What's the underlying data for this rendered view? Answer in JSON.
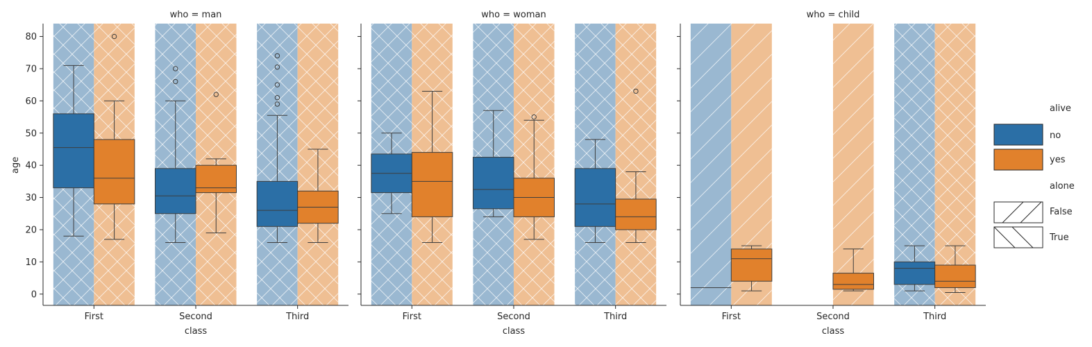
{
  "chart_data": {
    "type": "box",
    "facet_variable": "who",
    "facets": [
      {
        "title": "who = man",
        "boxes": [
          {
            "class": "First",
            "alive": "no",
            "min": 18,
            "q1": 33,
            "median": 45.5,
            "q3": 56,
            "max": 71,
            "outliers": []
          },
          {
            "class": "First",
            "alive": "yes",
            "min": 17,
            "q1": 28,
            "median": 36,
            "q3": 48,
            "max": 60,
            "outliers": [
              80
            ]
          },
          {
            "class": "Second",
            "alive": "no",
            "min": 16,
            "q1": 25,
            "median": 30.5,
            "q3": 39,
            "max": 60,
            "outliers": [
              66,
              70
            ]
          },
          {
            "class": "Second",
            "alive": "yes",
            "min": 19,
            "q1": 31.5,
            "median": 33,
            "q3": 40,
            "max": 42,
            "outliers": [
              62
            ]
          },
          {
            "class": "Third",
            "alive": "no",
            "min": 16,
            "q1": 21,
            "median": 26,
            "q3": 35,
            "max": 55.5,
            "outliers": [
              59,
              61,
              65,
              70.5,
              74
            ]
          },
          {
            "class": "Third",
            "alive": "yes",
            "min": 16,
            "q1": 22,
            "median": 27,
            "q3": 32,
            "max": 45,
            "outliers": []
          }
        ]
      },
      {
        "title": "who = woman",
        "boxes": [
          {
            "class": "First",
            "alive": "no",
            "min": 25,
            "q1": 31.5,
            "median": 37.5,
            "q3": 43.5,
            "max": 50,
            "outliers": []
          },
          {
            "class": "First",
            "alive": "yes",
            "min": 16,
            "q1": 24,
            "median": 35,
            "q3": 44,
            "max": 63,
            "outliers": []
          },
          {
            "class": "Second",
            "alive": "no",
            "min": 24,
            "q1": 26.5,
            "median": 32.5,
            "q3": 42.5,
            "max": 57,
            "outliers": []
          },
          {
            "class": "Second",
            "alive": "yes",
            "min": 17,
            "q1": 24,
            "median": 30,
            "q3": 36,
            "max": 54,
            "outliers": [
              55
            ]
          },
          {
            "class": "Third",
            "alive": "no",
            "min": 16,
            "q1": 21,
            "median": 28,
            "q3": 39,
            "max": 48,
            "outliers": []
          },
          {
            "class": "Third",
            "alive": "yes",
            "min": 16,
            "q1": 20,
            "median": 24,
            "q3": 29.5,
            "max": 38,
            "outliers": [
              63
            ]
          }
        ]
      },
      {
        "title": "who = child",
        "boxes": [
          {
            "class": "First",
            "alive": "no",
            "min": 2,
            "q1": 2,
            "median": 2,
            "q3": 2,
            "max": 2,
            "outliers": []
          },
          {
            "class": "First",
            "alive": "yes",
            "min": 1,
            "q1": 4,
            "median": 11,
            "q3": 14,
            "max": 15,
            "outliers": []
          },
          {
            "class": "Second",
            "alive": "yes",
            "min": 1,
            "q1": 1.5,
            "median": 3,
            "q3": 6.5,
            "max": 14,
            "outliers": []
          },
          {
            "class": "Third",
            "alive": "no",
            "min": 1,
            "q1": 3,
            "median": 8,
            "q3": 10,
            "max": 15,
            "outliers": []
          },
          {
            "class": "Third",
            "alive": "yes",
            "min": 0.5,
            "q1": 2,
            "median": 4,
            "q3": 9,
            "max": 15,
            "outliers": []
          }
        ]
      }
    ],
    "background_bands": [
      {
        "facet": "who = man",
        "class": "First",
        "alive": "no",
        "alone": "True"
      },
      {
        "facet": "who = man",
        "class": "First",
        "alive": "yes",
        "alone": "True"
      },
      {
        "facet": "who = man",
        "class": "Second",
        "alive": "no",
        "alone": "True"
      },
      {
        "facet": "who = man",
        "class": "Second",
        "alive": "yes",
        "alone": "True"
      },
      {
        "facet": "who = man",
        "class": "Third",
        "alive": "no",
        "alone": "True"
      },
      {
        "facet": "who = man",
        "class": "Third",
        "alive": "yes",
        "alone": "True"
      },
      {
        "facet": "who = woman",
        "class": "First",
        "alive": "no",
        "alone": "True"
      },
      {
        "facet": "who = woman",
        "class": "First",
        "alive": "yes",
        "alone": "True"
      },
      {
        "facet": "who = woman",
        "class": "Second",
        "alive": "no",
        "alone": "True"
      },
      {
        "facet": "who = woman",
        "class": "Second",
        "alive": "yes",
        "alone": "True"
      },
      {
        "facet": "who = woman",
        "class": "Third",
        "alive": "no",
        "alone": "True"
      },
      {
        "facet": "who = woman",
        "class": "Third",
        "alive": "yes",
        "alone": "True"
      },
      {
        "facet": "who = child",
        "class": "First",
        "alive": "no",
        "alone": "False"
      },
      {
        "facet": "who = child",
        "class": "First",
        "alive": "yes",
        "alone": "False"
      },
      {
        "facet": "who = child",
        "class": "Second",
        "alive": "yes",
        "alone": "False"
      },
      {
        "facet": "who = child",
        "class": "Third",
        "alive": "no",
        "alone": "True"
      },
      {
        "facet": "who = child",
        "class": "Third",
        "alive": "yes",
        "alone": "True"
      }
    ],
    "categories": [
      "First",
      "Second",
      "Third"
    ],
    "xlabel": "class",
    "ylabel": "age",
    "ylim": [
      -3.5,
      84
    ],
    "yticks": [
      0,
      10,
      20,
      30,
      40,
      50,
      60,
      70,
      80
    ],
    "grid": false,
    "legend": {
      "placement": "right",
      "hue_title": "alive",
      "hue_entries": [
        {
          "label": "no",
          "color": "#2b6fa6"
        },
        {
          "label": "yes",
          "color": "#e1812c"
        }
      ],
      "pattern_title": "alone",
      "pattern_entries": [
        {
          "label": "False",
          "hatch": "forward-slash"
        },
        {
          "label": "True",
          "hatch": "back-slash"
        }
      ]
    },
    "colors": {
      "no": "#2b6fa6",
      "yes": "#e1812c",
      "no_band": "#9ab8d1",
      "yes_band": "#efbf93",
      "whisker": "#3d3d3d"
    }
  }
}
